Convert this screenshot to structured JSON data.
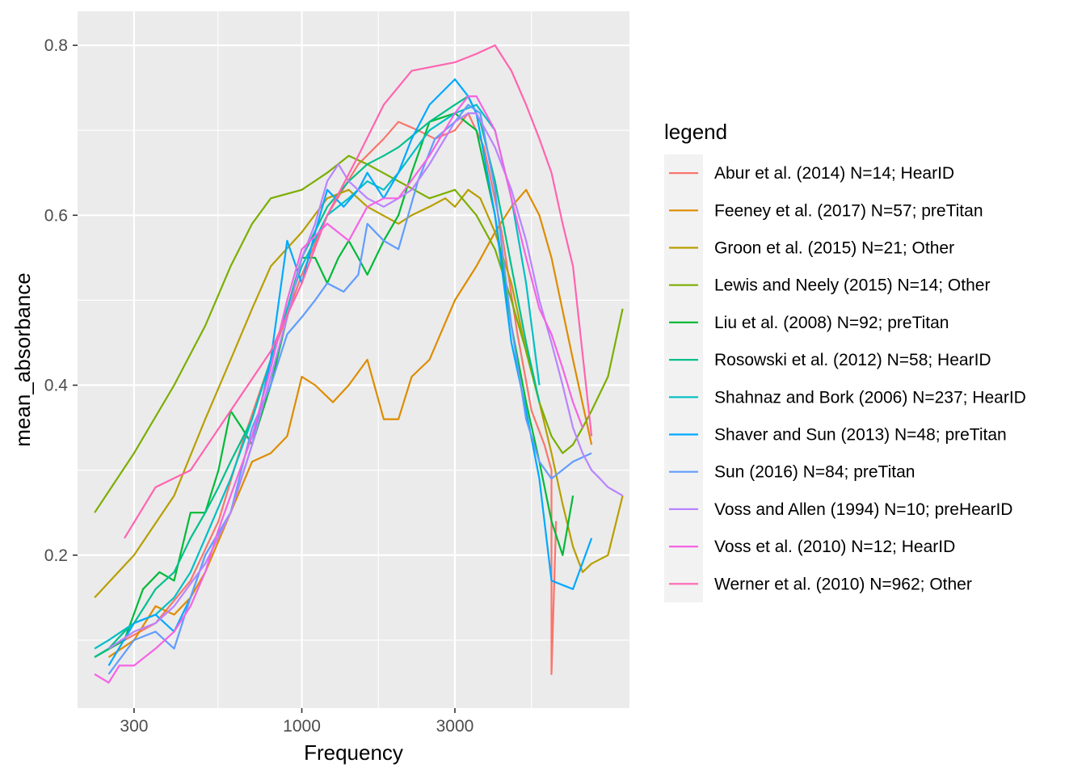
{
  "chart_data": {
    "type": "line",
    "xlabel": "Frequency",
    "ylabel": "mean_absorbance",
    "x_scale": "log10",
    "xlim": [
      200,
      10500
    ],
    "ylim": [
      0.02,
      0.84
    ],
    "x_ticks": [
      300,
      1000,
      3000
    ],
    "x_tick_labels": [
      "300",
      "1000",
      "3000"
    ],
    "y_ticks": [
      0.2,
      0.4,
      0.6,
      0.8
    ],
    "y_tick_labels": [
      "0.2",
      "0.4",
      "0.6",
      "0.8"
    ],
    "grid": true,
    "legend": {
      "title": "legend",
      "placement": "right"
    },
    "series": [
      {
        "name": "Abur et al. (2014) N=14; HearID",
        "color": "#F8766D",
        "x": [
          226,
          280,
          350,
          450,
          550,
          650,
          800,
          1000,
          1200,
          1500,
          1800,
          2000,
          2300,
          2600,
          3000,
          3300,
          3700,
          4200,
          4700,
          5200,
          5700,
          6000,
          6000,
          6200
        ],
        "y": [
          0.08,
          0.1,
          0.12,
          0.17,
          0.24,
          0.33,
          0.43,
          0.53,
          0.6,
          0.66,
          0.69,
          0.71,
          0.7,
          0.69,
          0.7,
          0.72,
          0.68,
          0.58,
          0.46,
          0.37,
          0.33,
          0.3,
          0.06,
          0.24
        ]
      },
      {
        "name": "Feeney et al. (2017) N=57; preTitan",
        "color": "#DE8C00",
        "x": [
          250,
          300,
          350,
          400,
          450,
          500,
          600,
          700,
          800,
          900,
          1000,
          1100,
          1250,
          1400,
          1600,
          1800,
          2000,
          2200,
          2500,
          3000,
          3500,
          4000,
          4500,
          5000,
          5500,
          6000,
          7000,
          8000
        ],
        "y": [
          0.08,
          0.1,
          0.14,
          0.13,
          0.15,
          0.18,
          0.25,
          0.31,
          0.32,
          0.34,
          0.41,
          0.4,
          0.38,
          0.4,
          0.43,
          0.36,
          0.36,
          0.41,
          0.43,
          0.5,
          0.54,
          0.58,
          0.61,
          0.63,
          0.6,
          0.55,
          0.43,
          0.33
        ]
      },
      {
        "name": "Groon et al. (2015) N=21; Other",
        "color": "#B79F00",
        "x": [
          226,
          300,
          400,
          500,
          600,
          700,
          800,
          1000,
          1200,
          1400,
          1600,
          2000,
          2200,
          2500,
          2800,
          3000,
          3300,
          3600,
          4000,
          4500,
          5000,
          5500,
          6000,
          6500,
          7000,
          7500,
          8000,
          9000,
          10000
        ],
        "y": [
          0.15,
          0.2,
          0.27,
          0.36,
          0.43,
          0.49,
          0.54,
          0.58,
          0.62,
          0.63,
          0.61,
          0.59,
          0.6,
          0.61,
          0.62,
          0.61,
          0.63,
          0.62,
          0.58,
          0.52,
          0.44,
          0.38,
          0.32,
          0.26,
          0.21,
          0.18,
          0.19,
          0.2,
          0.27
        ]
      },
      {
        "name": "Lewis and Neely (2015) N=14; Other",
        "color": "#7CAE00",
        "x": [
          226,
          300,
          400,
          500,
          600,
          700,
          800,
          1000,
          1200,
          1400,
          1600,
          2000,
          2500,
          3000,
          3500,
          4000,
          4500,
          5000,
          5500,
          6000,
          6500,
          7000,
          7500,
          8000,
          9000,
          10000
        ],
        "y": [
          0.25,
          0.32,
          0.4,
          0.47,
          0.54,
          0.59,
          0.62,
          0.63,
          0.65,
          0.67,
          0.66,
          0.64,
          0.62,
          0.63,
          0.6,
          0.56,
          0.5,
          0.44,
          0.38,
          0.34,
          0.32,
          0.33,
          0.35,
          0.37,
          0.41,
          0.49
        ]
      },
      {
        "name": "Liu et al. (2008) N=92; preTitan",
        "color": "#00BA38",
        "x": [
          226,
          280,
          320,
          360,
          400,
          450,
          500,
          550,
          600,
          650,
          700,
          800,
          900,
          1000,
          1100,
          1200,
          1300,
          1400,
          1500,
          1600,
          1800,
          2000,
          2200,
          2500,
          3000,
          3500,
          4000,
          4500,
          5000,
          5500,
          6000,
          6500,
          7000
        ],
        "y": [
          0.08,
          0.1,
          0.16,
          0.18,
          0.17,
          0.25,
          0.25,
          0.3,
          0.37,
          0.35,
          0.33,
          0.4,
          0.48,
          0.55,
          0.55,
          0.52,
          0.55,
          0.57,
          0.55,
          0.53,
          0.57,
          0.6,
          0.65,
          0.71,
          0.72,
          0.7,
          0.6,
          0.47,
          0.38,
          0.31,
          0.24,
          0.2,
          0.27
        ]
      },
      {
        "name": "Rosowski et al. (2012) N=58; HearID",
        "color": "#00C08B",
        "x": [
          226,
          250,
          280,
          300,
          350,
          400,
          450,
          500,
          550,
          600,
          700,
          800,
          900,
          1000,
          1200,
          1400,
          1600,
          1800,
          2000,
          2500,
          3000,
          3300,
          3600,
          4000,
          4500,
          5000,
          5500
        ],
        "y": [
          0.08,
          0.09,
          0.11,
          0.12,
          0.16,
          0.18,
          0.22,
          0.25,
          0.28,
          0.31,
          0.36,
          0.43,
          0.49,
          0.55,
          0.61,
          0.64,
          0.66,
          0.67,
          0.68,
          0.71,
          0.73,
          0.74,
          0.71,
          0.64,
          0.54,
          0.45,
          0.38
        ]
      },
      {
        "name": "Shahnaz and Bork (2006) N=237; HearID",
        "color": "#00BFC4",
        "x": [
          226,
          250,
          300,
          350,
          400,
          450,
          500,
          600,
          700,
          800,
          900,
          1000,
          1200,
          1400,
          1600,
          1800,
          2000,
          2500,
          3000,
          3500,
          4000,
          4500,
          5000,
          5500
        ],
        "y": [
          0.09,
          0.1,
          0.12,
          0.13,
          0.15,
          0.18,
          0.22,
          0.29,
          0.36,
          0.43,
          0.49,
          0.54,
          0.6,
          0.62,
          0.64,
          0.63,
          0.65,
          0.7,
          0.72,
          0.73,
          0.7,
          0.62,
          0.52,
          0.4
        ]
      },
      {
        "name": "Shaver and Sun (2013) N=48; preTitan",
        "color": "#00A9FF",
        "x": [
          250,
          300,
          350,
          400,
          450,
          500,
          600,
          700,
          800,
          900,
          1000,
          1100,
          1200,
          1350,
          1500,
          1600,
          1800,
          2000,
          2200,
          2500,
          3000,
          3300,
          3500,
          4000,
          4500,
          5000,
          5500,
          6000,
          7000,
          8000
        ],
        "y": [
          0.07,
          0.12,
          0.13,
          0.11,
          0.15,
          0.2,
          0.25,
          0.33,
          0.43,
          0.57,
          0.52,
          0.58,
          0.63,
          0.61,
          0.63,
          0.65,
          0.62,
          0.65,
          0.69,
          0.73,
          0.76,
          0.74,
          0.72,
          0.6,
          0.45,
          0.37,
          0.29,
          0.17,
          0.16,
          0.22
        ]
      },
      {
        "name": "Sun (2016) N=84; preTitan",
        "color": "#619CFF",
        "x": [
          250,
          300,
          350,
          400,
          450,
          500,
          600,
          700,
          800,
          900,
          1000,
          1100,
          1200,
          1350,
          1500,
          1600,
          1800,
          2000,
          2300,
          2600,
          3000,
          3300,
          3600,
          4000,
          4500,
          5000,
          5500,
          6000,
          7000,
          8000
        ],
        "y": [
          0.06,
          0.1,
          0.11,
          0.09,
          0.15,
          0.2,
          0.25,
          0.35,
          0.4,
          0.46,
          0.48,
          0.5,
          0.52,
          0.51,
          0.53,
          0.59,
          0.57,
          0.56,
          0.64,
          0.69,
          0.71,
          0.73,
          0.72,
          0.63,
          0.47,
          0.36,
          0.31,
          0.29,
          0.31,
          0.32
        ]
      },
      {
        "name": "Voss and Allen (1994) N=10; preHearID",
        "color": "#B983FF",
        "x": [
          250,
          300,
          350,
          400,
          500,
          600,
          700,
          800,
          900,
          1000,
          1100,
          1200,
          1300,
          1400,
          1600,
          1800,
          2000,
          2200,
          2500,
          3000,
          3300,
          3500,
          4000,
          4500,
          5000,
          5500,
          6000,
          6500,
          7000,
          7500,
          8000,
          8500,
          9000,
          10000
        ],
        "y": [
          0.09,
          0.11,
          0.12,
          0.14,
          0.19,
          0.25,
          0.33,
          0.41,
          0.48,
          0.55,
          0.59,
          0.64,
          0.66,
          0.64,
          0.62,
          0.61,
          0.62,
          0.63,
          0.66,
          0.71,
          0.72,
          0.72,
          0.68,
          0.63,
          0.57,
          0.5,
          0.45,
          0.4,
          0.35,
          0.32,
          0.3,
          0.29,
          0.28,
          0.27
        ]
      },
      {
        "name": "Voss et al. (2010) N=12; HearID",
        "color": "#F564E3",
        "x": [
          226,
          250,
          270,
          300,
          350,
          400,
          450,
          500,
          550,
          600,
          700,
          800,
          900,
          1000,
          1200,
          1400,
          1600,
          1800,
          2000,
          2500,
          3000,
          3300,
          3500,
          4000,
          4500,
          5000,
          5500,
          6000,
          6500,
          7000,
          7500
        ],
        "y": [
          0.06,
          0.05,
          0.07,
          0.07,
          0.09,
          0.11,
          0.14,
          0.18,
          0.23,
          0.27,
          0.34,
          0.42,
          0.5,
          0.56,
          0.59,
          0.57,
          0.61,
          0.62,
          0.62,
          0.67,
          0.72,
          0.74,
          0.74,
          0.7,
          0.62,
          0.55,
          0.49,
          0.46,
          0.42,
          0.38,
          0.35
        ]
      },
      {
        "name": "Werner et al. (2010) N=962; Other",
        "color": "#FF64B0",
        "x": [
          280,
          350,
          450,
          600,
          800,
          1000,
          1200,
          1500,
          1800,
          2200,
          3000,
          3500,
          4000,
          4500,
          5000,
          5500,
          6000,
          6500,
          7000,
          8000
        ],
        "y": [
          0.22,
          0.28,
          0.3,
          0.37,
          0.44,
          0.52,
          0.6,
          0.67,
          0.73,
          0.77,
          0.78,
          0.79,
          0.8,
          0.77,
          0.73,
          0.69,
          0.65,
          0.59,
          0.54,
          0.34
        ]
      }
    ]
  }
}
